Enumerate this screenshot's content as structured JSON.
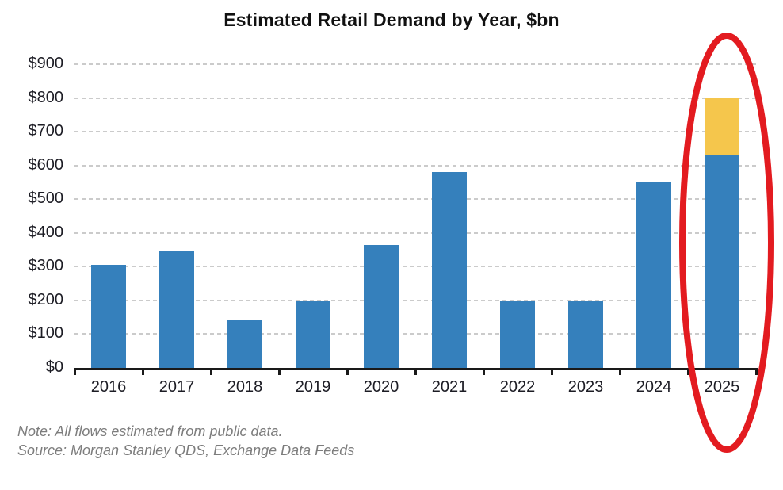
{
  "chart_data": {
    "type": "bar",
    "title": "Estimated Retail Demand by Year, $bn",
    "categories": [
      "2016",
      "2017",
      "2018",
      "2019",
      "2020",
      "2021",
      "2022",
      "2023",
      "2024",
      "2025"
    ],
    "series": [
      {
        "name": "blue-segment",
        "color": "#3580BC",
        "values": [
          305,
          345,
          140,
          200,
          365,
          580,
          200,
          200,
          550,
          630
        ]
      },
      {
        "name": "yellow-segment",
        "color": "#F5C64C",
        "values": [
          0,
          0,
          0,
          0,
          0,
          0,
          0,
          0,
          0,
          170
        ]
      }
    ],
    "stacked": true,
    "y_ticks": [
      "$0",
      "$100",
      "$200",
      "$300",
      "$400",
      "$500",
      "$600",
      "$700",
      "$800",
      "$900"
    ],
    "ylim": [
      0,
      900
    ],
    "y_tick_step": 100,
    "xlabel": "",
    "ylabel": "",
    "grid": "horizontal-dashed",
    "legend": "none",
    "annotation": {
      "shape": "ellipse",
      "target": "2025",
      "color": "#E31B20"
    }
  },
  "footer": {
    "note": "Note:  All flows estimated from public data.",
    "source": "Source: Morgan Stanley QDS, Exchange Data Feeds"
  }
}
